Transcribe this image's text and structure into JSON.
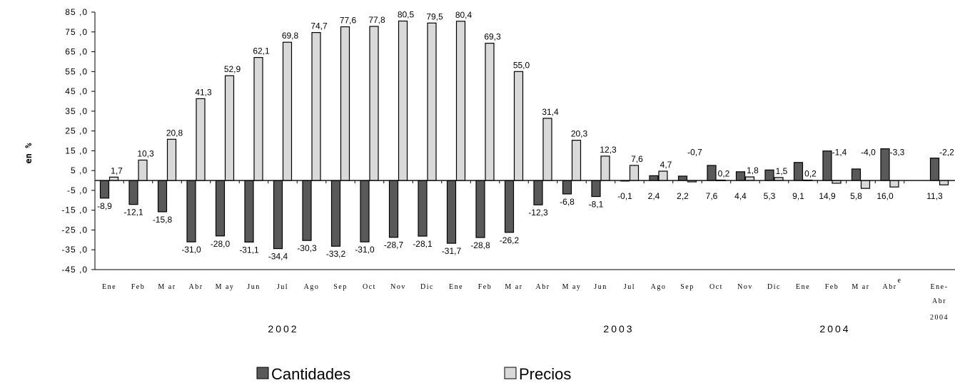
{
  "chart_data": {
    "type": "bar",
    "ylabel": "en %",
    "ylim": [
      -45,
      85
    ],
    "ytick_labels": [
      "85 ,0",
      "75 ,0",
      "65 ,0",
      "55 ,0",
      "45 ,0",
      "35 ,0",
      "25 ,0",
      "15 ,0",
      "5 ,0",
      "-5 ,0",
      "-15 ,0",
      "-25 ,0",
      "-35 ,0",
      "-45 ,0"
    ],
    "ytick_values": [
      85,
      75,
      65,
      55,
      45,
      35,
      25,
      15,
      5,
      -5,
      -15,
      -25,
      -35,
      -45
    ],
    "categories": [
      "Ene",
      "Feb",
      "M ar",
      "Abr",
      "M ay",
      "Jun",
      "Jul",
      "Ago",
      "Sep",
      "Oct",
      "Nov",
      "Dic",
      "Ene",
      "Feb",
      "M ar",
      "Abr",
      "M ay",
      "Jun",
      "Jul",
      "Ago",
      "Sep",
      "Oct",
      "Nov",
      "Dic",
      "Ene",
      "Feb",
      "M ar",
      "Abr",
      "Ene-Abr"
    ],
    "category_notes": {
      "Abr_2004_superscript": "e",
      "last_category_year": "2004"
    },
    "year_labels": [
      "2002",
      "2003",
      "2004"
    ],
    "series": [
      {
        "name": "Cantidades",
        "color": "#595959",
        "values": [
          -8.9,
          -12.1,
          -15.8,
          -31.0,
          -28.0,
          -31.1,
          -34.4,
          -30.3,
          -33.2,
          -31.0,
          -28.7,
          -28.1,
          -31.7,
          -28.8,
          -26.2,
          -12.3,
          -6.8,
          -8.1,
          -0.1,
          2.4,
          2.2,
          7.6,
          4.4,
          5.3,
          9.1,
          14.9,
          5.8,
          16.0,
          11.3
        ],
        "labels": [
          "-8,9",
          "-12,1",
          "-15,8",
          "-31,0",
          "-28,0",
          "-31,1",
          "-34,4",
          "-30,3",
          "-33,2",
          "-31,0",
          "-28,7",
          "-28,1",
          "-31,7",
          "-28,8",
          "-26,2",
          "-12,3",
          "-6,8",
          "-8,1",
          "-0,1",
          "2,4",
          "2,2",
          "7,6",
          "4,4",
          "5,3",
          "9,1",
          "14,9",
          "5,8",
          "16,0",
          "11,3"
        ]
      },
      {
        "name": "Precios",
        "color": "#d9d9d9",
        "values": [
          1.7,
          10.3,
          20.8,
          41.3,
          52.9,
          62.1,
          69.8,
          74.7,
          77.6,
          77.8,
          80.5,
          79.5,
          80.4,
          69.3,
          55.0,
          31.4,
          20.3,
          12.3,
          7.6,
          4.7,
          -0.7,
          0.2,
          1.8,
          1.5,
          0.2,
          -1.4,
          -4.0,
          -3.3,
          -2.2
        ],
        "labels": [
          "1,7",
          "10,3",
          "20,8",
          "41,3",
          "52,9",
          "62,1",
          "69,8",
          "74,7",
          "77,6",
          "77,8",
          "80,5",
          "79,5",
          "80,4",
          "69,3",
          "55,0",
          "31,4",
          "20,3",
          "12,3",
          "7,6",
          "4,7",
          "-0,7",
          "0,2",
          "1,8",
          "1,5",
          "0,2",
          "-1,4",
          "-4,0",
          "-3,3",
          "-2,2"
        ]
      }
    ],
    "legend": "bottom-center",
    "grid": false
  }
}
